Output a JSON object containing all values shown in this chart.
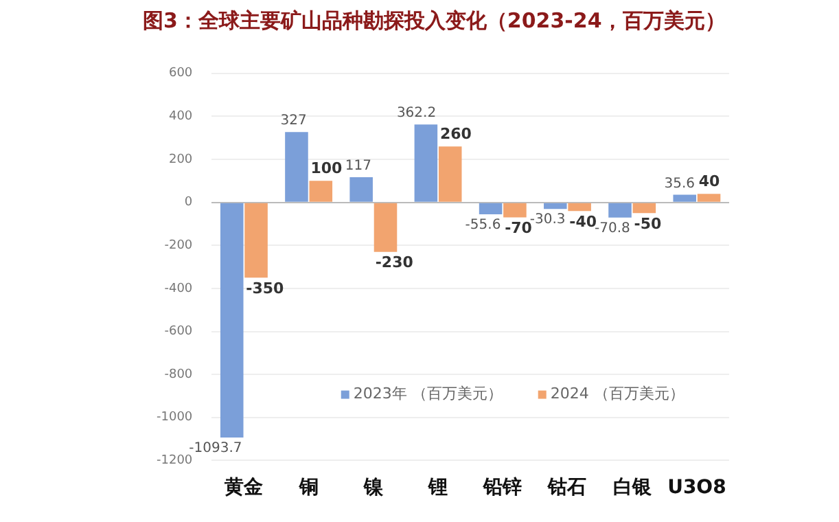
{
  "chart_data": {
    "type": "bar",
    "title": "图3：全球主要矿山品种勘探投入变化（2023-24，百万美元）",
    "categories": [
      "黄金",
      "铜",
      "镍",
      "锂",
      "铅锌",
      "钴石",
      "白银",
      "U3O8"
    ],
    "series": [
      {
        "name": "2023年 （百万美元）",
        "color": "#7b9fd9",
        "values": [
          -1093.7,
          327,
          117,
          362.2,
          -55.6,
          -30.3,
          -70.8,
          35.6
        ]
      },
      {
        "name": "2024 （百万美元）",
        "color": "#f2a46f",
        "values": [
          -350,
          100,
          -230,
          260,
          -70,
          -40,
          -50,
          40
        ]
      }
    ],
    "ylim": [
      -1200,
      600
    ],
    "yticks": [
      -1200,
      -1000,
      -800,
      -600,
      -400,
      -200,
      0,
      200,
      400,
      600
    ],
    "grid": "y",
    "legend": "bottom",
    "data_labels": true
  }
}
